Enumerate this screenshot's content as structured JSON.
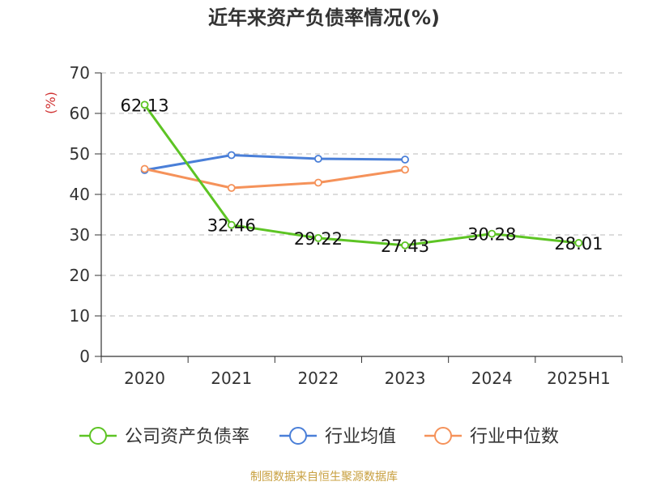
{
  "chart_data": {
    "type": "line",
    "title": "近年来资产负债率情况(%)",
    "ylabel": "(%)",
    "categories": [
      "2020",
      "2021",
      "2022",
      "2023",
      "2024",
      "2025H1"
    ],
    "ylim": [
      0,
      70
    ],
    "yticks": [
      0,
      10,
      20,
      30,
      40,
      50,
      60,
      70
    ],
    "grid": true,
    "legend_position": "bottom",
    "series": [
      {
        "name": "公司资产负债率",
        "color": "#5dc424",
        "values": [
          62.13,
          32.46,
          29.22,
          27.43,
          30.28,
          28.01
        ],
        "labels": [
          "62.13",
          "32.46",
          "29.22",
          "27.43",
          "30.28",
          "28.01"
        ]
      },
      {
        "name": "行业均值",
        "color": "#4a7fd8",
        "values": [
          46.0,
          49.7,
          48.8,
          48.6,
          null,
          null
        ]
      },
      {
        "name": "行业中位数",
        "color": "#f5925a",
        "values": [
          46.3,
          41.6,
          42.9,
          46.1,
          null,
          null
        ]
      }
    ]
  },
  "source": "制图数据来自恒生聚源数据库"
}
